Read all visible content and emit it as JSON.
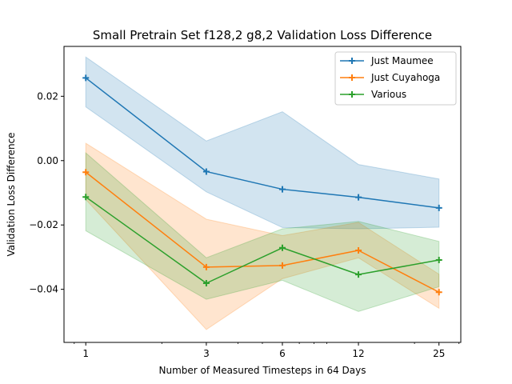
{
  "chart_data": {
    "type": "line",
    "title": "Small Pretrain Set f128,2 g8,2 Validation Loss Difference",
    "xlabel": "Number of Measured Timesteps in 64 Days",
    "ylabel": "Validation Loss Difference",
    "xscale": "log",
    "x": [
      1,
      3,
      6,
      12,
      25
    ],
    "xticks": [
      "1",
      "3",
      "6",
      "12",
      "25"
    ],
    "yticks": [
      "0.02",
      "0.00",
      "−0.02",
      "−0.04"
    ],
    "ytick_values": [
      0.02,
      0.0,
      -0.02,
      -0.04
    ],
    "xlim": [
      0.82,
      30.5
    ],
    "ylim": [
      -0.0565,
      0.0355
    ],
    "grid": false,
    "legend_position": "top-right",
    "series": [
      {
        "name": "Just Maumee",
        "color": "#1f77b4",
        "values": [
          0.0257,
          -0.0034,
          -0.0089,
          -0.0114,
          -0.0147
        ],
        "lower": [
          0.0167,
          -0.0097,
          -0.0208,
          -0.0212,
          -0.0207
        ],
        "upper": [
          0.0322,
          0.0061,
          0.0152,
          -0.0012,
          -0.0057
        ]
      },
      {
        "name": "Just Cuyahoga",
        "color": "#ff7f0e",
        "values": [
          -0.0036,
          -0.0331,
          -0.0326,
          -0.0279,
          -0.0409
        ],
        "lower": [
          -0.0121,
          -0.0525,
          -0.0367,
          -0.0302,
          -0.0459
        ],
        "upper": [
          0.0054,
          -0.0182,
          -0.0233,
          -0.0192,
          -0.0353
        ]
      },
      {
        "name": "Various",
        "color": "#2ca02c",
        "values": [
          -0.0113,
          -0.0381,
          -0.0271,
          -0.0354,
          -0.0309
        ],
        "lower": [
          -0.0218,
          -0.0431,
          -0.0372,
          -0.0469,
          -0.0392
        ],
        "upper": [
          0.0024,
          -0.0302,
          -0.0212,
          -0.0189,
          -0.0251
        ]
      }
    ]
  }
}
